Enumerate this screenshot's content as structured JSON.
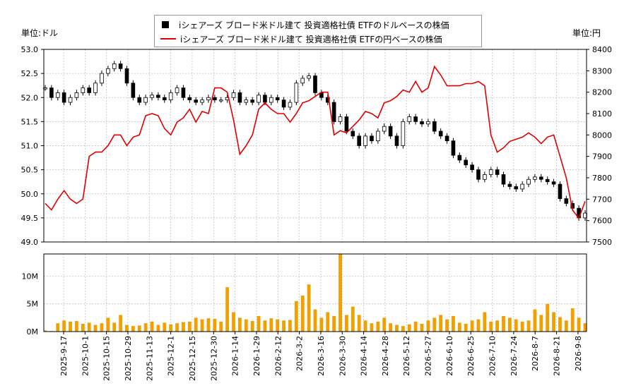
{
  "units": {
    "left": "単位:ドル",
    "right": "単位:円"
  },
  "legend": {
    "usd": "iシェアーズ ブロード米ドル建て 投資適格社債 ETFのドルベースの株価",
    "jpy": "iシェアーズ ブロード米ドル建て 投資適格社債 ETFの円ベースの株価"
  },
  "colors": {
    "candle": "#000000",
    "jpy_line": "#e00000",
    "volume": "#f0a000",
    "grid": "#bbbbbb"
  },
  "chart_data": [
    {
      "type": "candlestick",
      "name": "price",
      "ylim_left": [
        49.0,
        53.0
      ],
      "yticks_left": [
        "49.0",
        "49.5",
        "50.0",
        "50.5",
        "51.0",
        "51.5",
        "52.0",
        "52.5",
        "53.0"
      ],
      "ylim_right": [
        7500,
        8400
      ],
      "yticks_right": [
        "7500",
        "7600",
        "7700",
        "7800",
        "7900",
        "8000",
        "8100",
        "8200",
        "8300",
        "8400"
      ],
      "x_tick_labels": [
        "2025-9-17",
        "2025-10-1",
        "2025-10-15",
        "2025-10-29",
        "2025-11-13",
        "2025-12-1",
        "2025-12-15",
        "2025-12-30",
        "2026-1-14",
        "2026-1-29",
        "2026-2-12",
        "2026-3-2",
        "2026-3-16",
        "2026-3-30",
        "2026-4-14",
        "2026-4-28",
        "2026-5-12",
        "2026-5-27",
        "2026-6-10",
        "2026-6-25",
        "2026-7-10",
        "2026-7-24",
        "2026-8-7",
        "2026-8-21",
        "2026-9-8"
      ],
      "close_usd": [
        52.2,
        52.0,
        52.1,
        51.9,
        52.0,
        52.1,
        52.2,
        52.1,
        52.3,
        52.5,
        52.6,
        52.7,
        52.6,
        52.3,
        52.0,
        51.9,
        52.0,
        52.05,
        52.0,
        51.95,
        52.1,
        52.2,
        52.0,
        51.95,
        51.9,
        51.95,
        52.0,
        51.95,
        51.95,
        52.0,
        52.1,
        51.9,
        51.95,
        51.9,
        52.05,
        51.9,
        52.0,
        51.95,
        51.8,
        51.9,
        52.3,
        52.4,
        52.45,
        52.1,
        52.0,
        51.9,
        51.5,
        51.6,
        51.3,
        51.2,
        51.0,
        51.2,
        51.1,
        51.3,
        51.4,
        51.2,
        51.0,
        51.5,
        51.6,
        51.5,
        51.45,
        51.5,
        51.3,
        51.2,
        51.1,
        50.8,
        50.7,
        50.6,
        50.5,
        50.3,
        50.4,
        50.5,
        50.4,
        50.2,
        50.15,
        50.1,
        50.2,
        50.3,
        50.35,
        50.3,
        50.25,
        50.2,
        49.9,
        49.8,
        49.7,
        49.5,
        49.6
      ],
      "close_jpy": [
        7680,
        7650,
        7700,
        7740,
        7700,
        7680,
        7700,
        7900,
        7920,
        7920,
        7950,
        8000,
        8000,
        7950,
        7990,
        8000,
        8090,
        8100,
        8090,
        8030,
        8000,
        8060,
        8080,
        8120,
        8060,
        8110,
        8100,
        8220,
        8220,
        8200,
        8070,
        7910,
        7950,
        8000,
        8120,
        8150,
        8120,
        8100,
        8100,
        8060,
        8100,
        8150,
        8160,
        8180,
        8200,
        8200,
        8000,
        8020,
        8010,
        8040,
        8070,
        8110,
        8100,
        8080,
        8150,
        8160,
        8180,
        8210,
        8200,
        8250,
        8200,
        8220,
        8320,
        8280,
        8230,
        8230,
        8230,
        8240,
        8240,
        8250,
        8230,
        8000,
        7920,
        7940,
        7970,
        7980,
        7990,
        8010,
        7990,
        7960,
        7990,
        8000,
        7900,
        7800,
        7650,
        7610,
        7690
      ],
      "volume_m": [
        0.2,
        0.1,
        1.5,
        2.0,
        1.8,
        1.9,
        1.4,
        1.6,
        1.2,
        1.5,
        2.5,
        1.6,
        3.0,
        1.2,
        1.0,
        1.1,
        1.5,
        1.8,
        1.2,
        1.6,
        1.3,
        1.5,
        1.7,
        1.8,
        2.5,
        2.2,
        2.4,
        2.3,
        1.8,
        8.0,
        3.5,
        2.5,
        2.2,
        1.9,
        2.8,
        2.0,
        2.4,
        2.2,
        2.0,
        2.1,
        5.5,
        6.5,
        8.5,
        4.0,
        2.5,
        3.5,
        2.8,
        14.0,
        3.0,
        4.5,
        3.0,
        2.0,
        1.5,
        1.8,
        2.5,
        1.5,
        1.2,
        1.0,
        1.3,
        1.8,
        1.4,
        2.0,
        2.5,
        3.0,
        2.2,
        2.8,
        1.6,
        1.4,
        2.0,
        2.2,
        3.5,
        1.8,
        2.0,
        2.8,
        2.5,
        2.2,
        1.8,
        2.0,
        4.0,
        3.0,
        5.0,
        3.5,
        2.6,
        2.0,
        4.2,
        2.5,
        1.5
      ],
      "volume_ylim": [
        0,
        14
      ],
      "volume_yticks": [
        "0M",
        "5M",
        "10M"
      ]
    }
  ]
}
